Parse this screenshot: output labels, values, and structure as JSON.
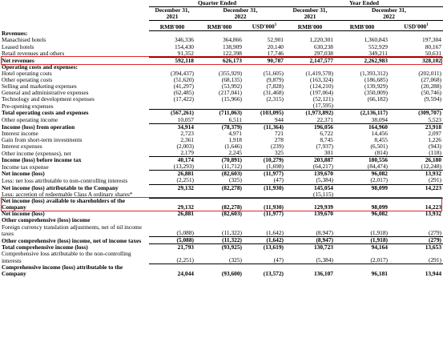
{
  "header": {
    "quarter_ended": "Quarter Ended",
    "year_ended": "Year Ended",
    "dates": [
      [
        "December 31,",
        "2021"
      ],
      [
        "December 31,",
        "2022"
      ],
      [
        "December 31,",
        "2021"
      ],
      [
        "December 31,",
        "2022"
      ]
    ],
    "units": [
      {
        "text": "RMB'000"
      },
      {
        "text": "RMB'000"
      },
      {
        "text": "USD'000",
        "sup": "1"
      },
      {
        "text": "RMB'000"
      },
      {
        "text": "RMB'000"
      },
      {
        "text": "USD'000",
        "sup": "1"
      }
    ]
  },
  "rows": [
    {
      "label": "Revenues:",
      "bold": true,
      "values": [
        null,
        null,
        null,
        null,
        null,
        null
      ]
    },
    {
      "label": "Manachised hotels",
      "values": [
        "346,336",
        "364,866",
        "52,901",
        "1,220,301",
        "1,360,843",
        "197,304"
      ]
    },
    {
      "label": "Leased hotels",
      "values": [
        "154,430",
        "138,909",
        "20,140",
        "630,238",
        "552,929",
        "80,167"
      ]
    },
    {
      "label": "Retail revenues and others",
      "rule": true,
      "values": [
        "91,352",
        "122,398",
        "17,746",
        "297,038",
        "349,211",
        "50,631"
      ]
    },
    {
      "label": "Net revenues",
      "bold": true,
      "boxed": true,
      "values": [
        "592,118",
        "626,173",
        "90,787",
        "2,147,577",
        "2,262,983",
        "328,102"
      ]
    },
    {
      "label": "Operating costs and expenses:",
      "bold": true,
      "values": [
        null,
        null,
        null,
        null,
        null,
        null
      ]
    },
    {
      "label": "Hotel operating costs",
      "values": [
        "(394,437)",
        "(355,929)",
        "(51,605)",
        "(1,419,578)",
        "(1,393,312)",
        "(202,011)"
      ]
    },
    {
      "label": "Other operating costs",
      "values": [
        "(51,620)",
        "(68,135)",
        "(9,879)",
        "(163,324)",
        "(186,685)",
        "(27,068)"
      ]
    },
    {
      "label": "Selling and marketing expenses",
      "values": [
        "(41,297)",
        "(53,992)",
        "(7,828)",
        "(124,210)",
        "(139,929)",
        "(20,288)"
      ]
    },
    {
      "label": "General and administrative expenses",
      "values": [
        "(62,485)",
        "(217,041)",
        "(31,468)",
        "(197,064)",
        "(350,009)",
        "(50,746)"
      ]
    },
    {
      "label": "Technology and development expenses",
      "values": [
        "(17,422)",
        "(15,966)",
        "(2,315)",
        "(52,121)",
        "(66,182)",
        "(9,594)"
      ]
    },
    {
      "label": "Pre-opening expenses",
      "rule": true,
      "values": [
        null,
        null,
        null,
        "(17,595)",
        null,
        null
      ]
    },
    {
      "label": "Total operating costs and expenses",
      "bold": true,
      "values": [
        "(567,261)",
        "(711,063)",
        "(103,095)",
        "(1,973,892)",
        "(2,136,117)",
        "(309,707)"
      ]
    },
    {
      "label": "Other operating income",
      "rule": true,
      "values": [
        "10,057",
        "6,511",
        "944",
        "22,371",
        "38,094",
        "5,523"
      ]
    },
    {
      "label": "Income (loss) from operation",
      "bold": true,
      "values": [
        "34,914",
        "(78,379)",
        "(11,364)",
        "196,056",
        "164,960",
        "23,918"
      ]
    },
    {
      "label": "Interest income",
      "values": [
        "2,723",
        "4,971",
        "721",
        "6,722",
        "14,456",
        "2,097"
      ]
    },
    {
      "label": "Gain from short-term investments",
      "values": [
        "2,361",
        "1,918",
        "278",
        "8,745",
        "8,455",
        "1,226"
      ]
    },
    {
      "label": "Interest expenses",
      "values": [
        "(2,003)",
        "(1,646)",
        "(239)",
        "(7,937)",
        "(6,501)",
        "(943)"
      ]
    },
    {
      "label": "Other income (expenses), net",
      "rule": true,
      "values": [
        "2,179",
        "2,245",
        "325",
        "301",
        "(814)",
        "(118)"
      ]
    },
    {
      "label": "Income (loss) before income tax",
      "bold": true,
      "values": [
        "40,174",
        "(70,891)",
        "(10,279)",
        "203,887",
        "180,556",
        "26,180"
      ]
    },
    {
      "label": "Income tax expense",
      "rule": true,
      "values": [
        "(13,293)",
        "(11,712)",
        "(1,698)",
        "(64,217)",
        "(84,474)",
        "(12,248)"
      ]
    },
    {
      "label": "Net income (loss)",
      "bold": true,
      "values": [
        "26,881",
        "(82,603)",
        "(11,977)",
        "139,670",
        "96,082",
        "13,932"
      ]
    },
    {
      "label": "Less: net loss attributable to non-controlling interests",
      "rule": true,
      "values": [
        "(2,251)",
        "(325)",
        "(47)",
        "(5,384)",
        "(2,017)",
        "(291)"
      ]
    },
    {
      "label": "Net income (loss) attributable to the Company",
      "bold": true,
      "values": [
        "29,132",
        "(82,278)",
        "(11,930)",
        "145,054",
        "98,099",
        "14,223"
      ]
    },
    {
      "label": "Less: accretion of redeemable Class A ordinary shares*",
      "rule": true,
      "values": [
        null,
        null,
        null,
        "(15,115)",
        null,
        null
      ]
    },
    {
      "label": "Net income (loss) available to shareholders of the Company",
      "bold": true,
      "boxed": true,
      "values": [
        "29,132",
        "(82,278)",
        "(11,930)",
        "129,939",
        "98,099",
        "14,223"
      ]
    },
    {
      "label": "Net income (loss)",
      "bold": true,
      "values": [
        "26,881",
        "(82,603)",
        "(11,977)",
        "139,670",
        "96,082",
        "13,932"
      ]
    },
    {
      "label": "Other comprehensive (loss) income",
      "bold": true,
      "values": [
        null,
        null,
        null,
        null,
        null,
        null
      ]
    },
    {
      "label": "Foreign currency translation adjustments, net of nil income taxes",
      "rule": true,
      "values": [
        "(5,088)",
        "(11,322)",
        "(1,642)",
        "(8,947)",
        "(1,918)",
        "(279)"
      ]
    },
    {
      "label": "Other comprehensive (loss) income, net of income taxes",
      "bold": true,
      "rule": true,
      "values": [
        "(5,088)",
        "(11,322)",
        "(1,642)",
        "(8,947)",
        "(1,918)",
        "(279)"
      ]
    },
    {
      "label": "Total comprehensive income (loss)",
      "bold": true,
      "values": [
        "21,793",
        "(93,925)",
        "(13,619)",
        "130,723",
        "94,164",
        "13,653"
      ]
    },
    {
      "label": "Comprehensive loss attributable to the non-controlling interests",
      "rule": true,
      "values": [
        "(2,251)",
        "(325)",
        "(47)",
        "(5,384)",
        "(2,017)",
        "(291)"
      ]
    },
    {
      "label": "Comprehensive income (loss) attributable to the Company",
      "bold": true,
      "values": [
        "24,044",
        "(93,600)",
        "(13,572)",
        "136,107",
        "96,181",
        "13,944"
      ]
    }
  ]
}
